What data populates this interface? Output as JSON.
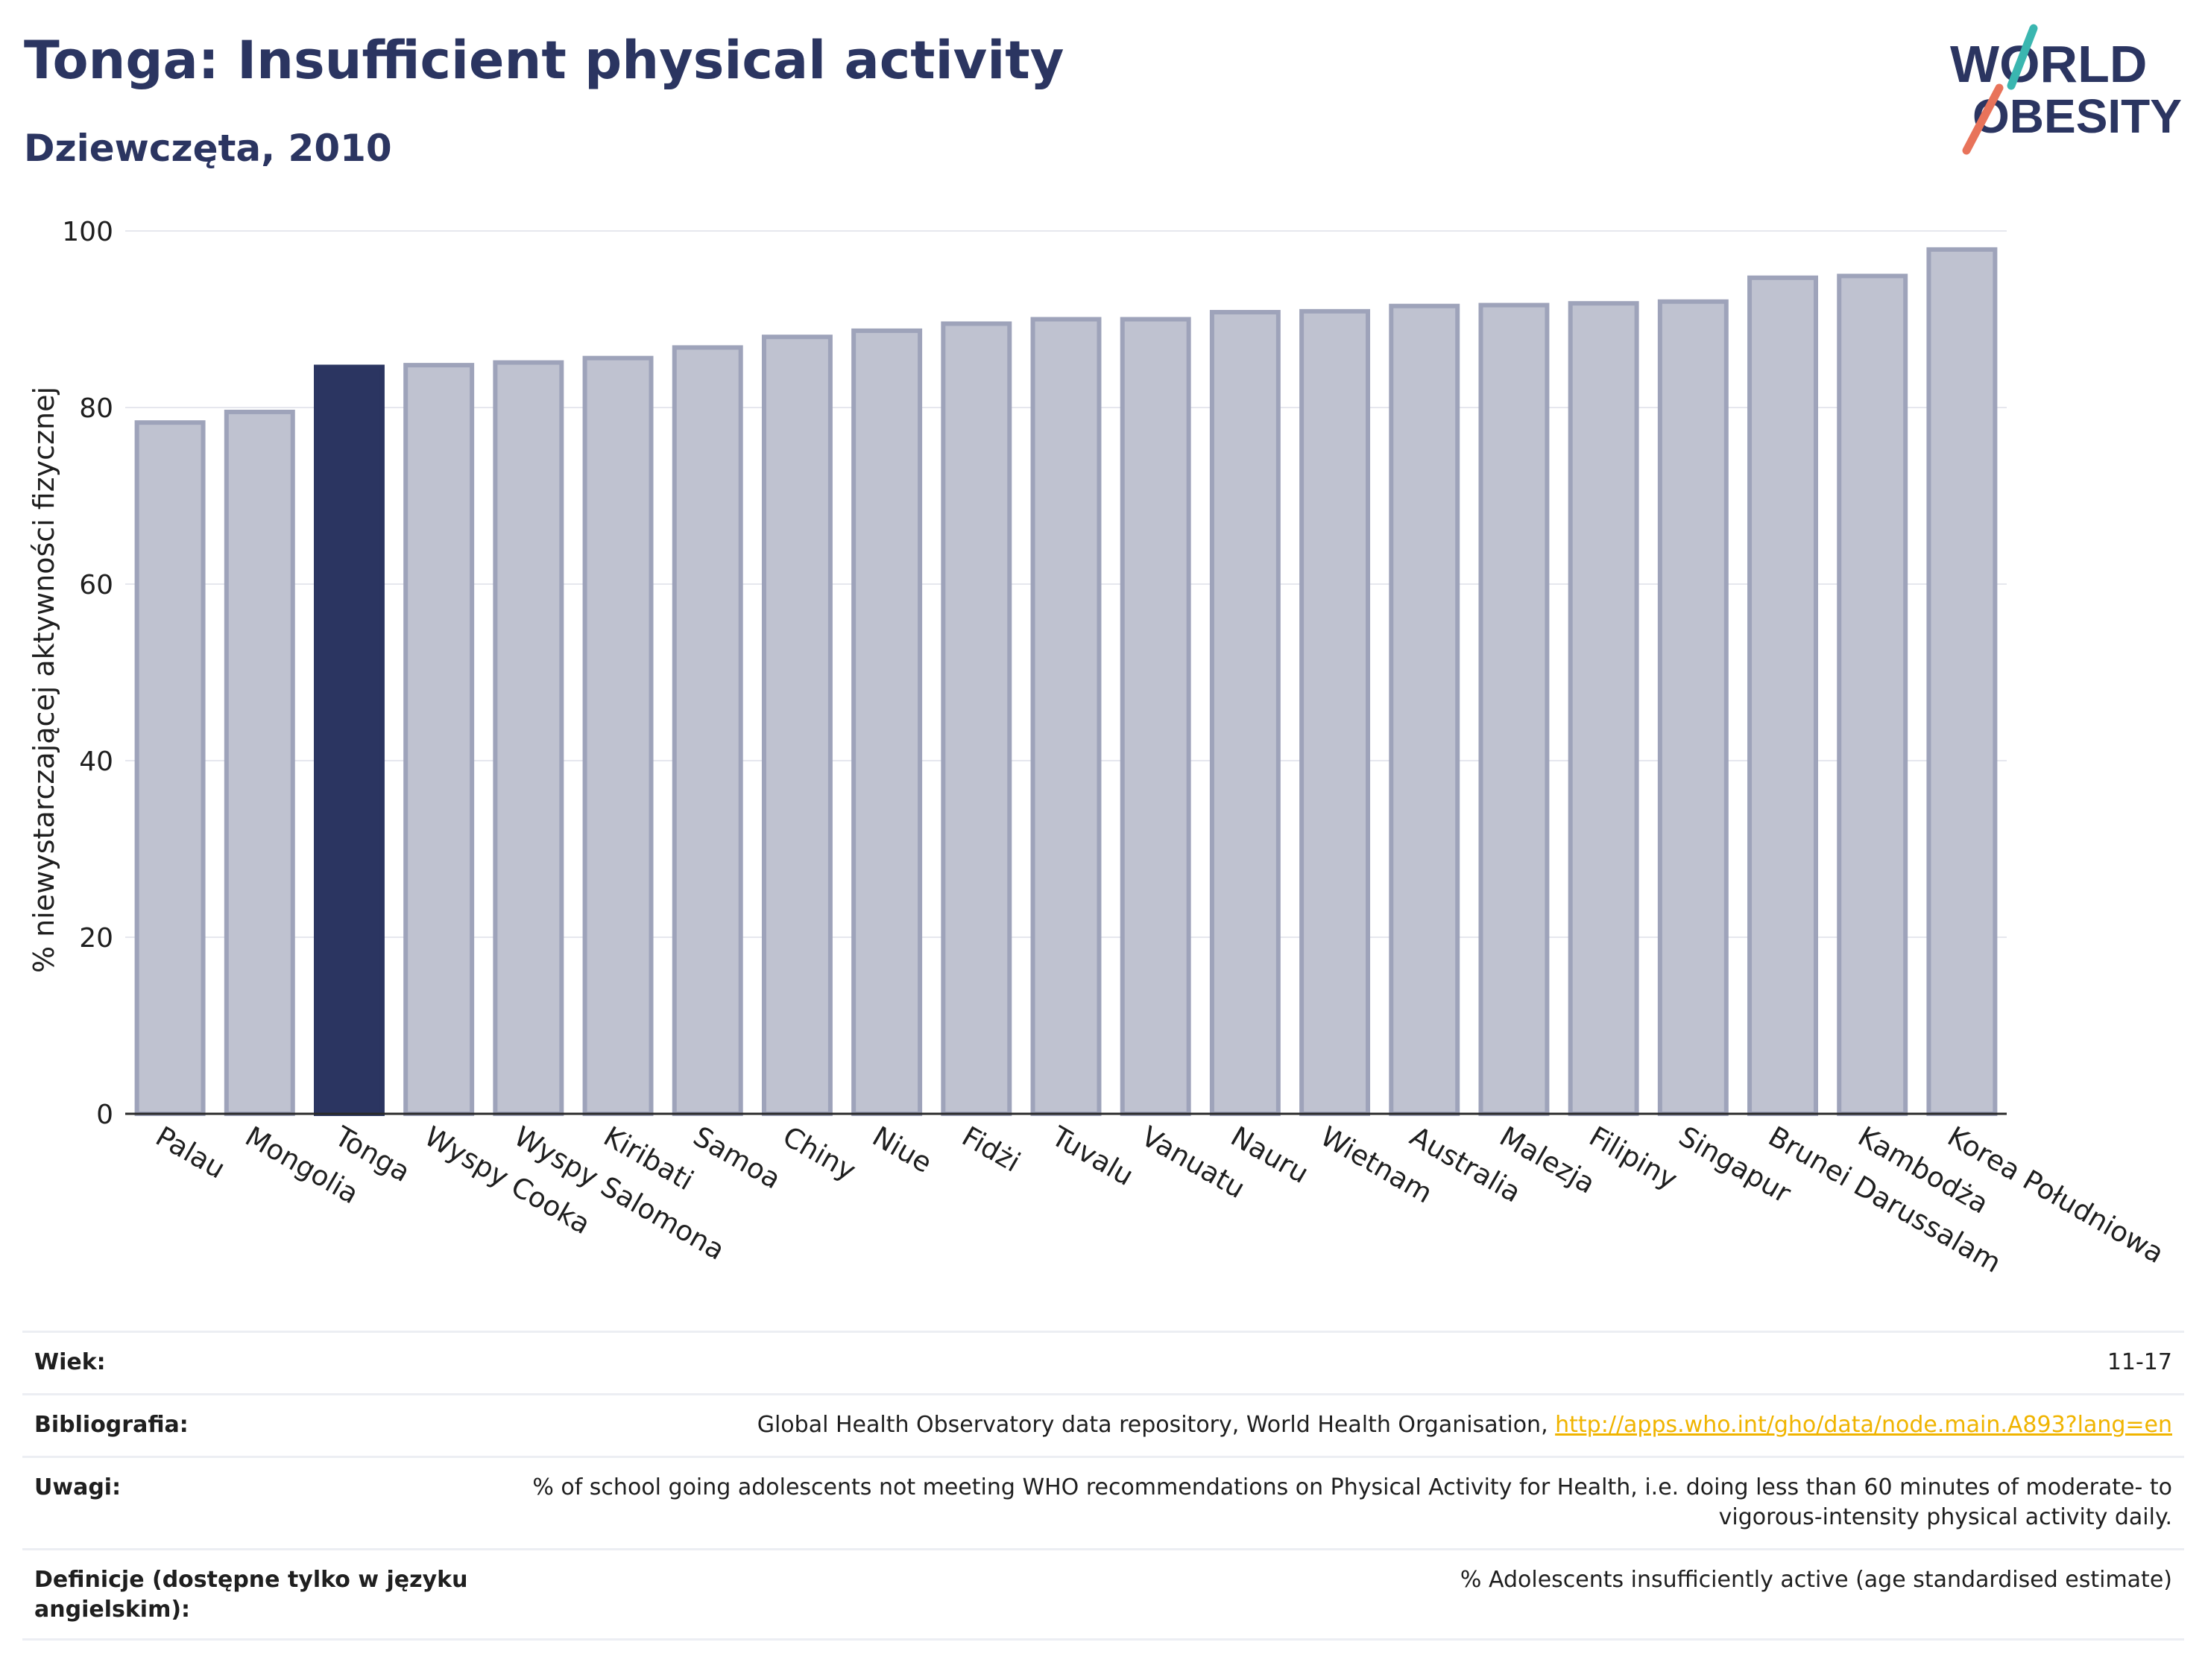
{
  "header": {
    "title": "Tonga: Insufficient physical activity",
    "subtitle": "Dziewczęta, 2010"
  },
  "logo": {
    "line1": "WORLD",
    "line2": "OBESITY",
    "color": "#2b3561",
    "accent_teal": "#3ab6b0",
    "accent_coral": "#e8735a"
  },
  "chart_data": {
    "type": "bar",
    "categories": [
      "Palau",
      "Mongolia",
      "Tonga",
      "Wyspy Cooka",
      "Wyspy Salomona",
      "Kiribati",
      "Samoa",
      "Chiny",
      "Niue",
      "Fidżi",
      "Tuvalu",
      "Vanuatu",
      "Nauru",
      "Wietnam",
      "Australia",
      "Malezja",
      "Filipiny",
      "Singapur",
      "Brunei Darussalam",
      "Kambodża",
      "Korea Południowa"
    ],
    "values": [
      78.3,
      79.5,
      84.6,
      84.8,
      85.1,
      85.6,
      86.8,
      88.0,
      88.7,
      89.5,
      90.0,
      90.0,
      90.8,
      90.9,
      91.5,
      91.6,
      91.8,
      92.0,
      94.7,
      94.9,
      97.9
    ],
    "highlight": "Tonga",
    "ylabel": "% niewystarczającej aktywności fizycznej",
    "xlabel": "",
    "ylim": [
      0,
      100
    ],
    "yticks": [
      0,
      20,
      40,
      60,
      80,
      100
    ],
    "grid": true,
    "colors": {
      "bar": "#bfc2d0",
      "bar_edge": "#9ea3ba",
      "highlight": "#2b3561",
      "grid": "#e6e7ee",
      "axis": "#2a2a2a"
    }
  },
  "meta": {
    "age_label": "Wiek:",
    "age_value": "11-17",
    "bib_label": "Bibliografia:",
    "bib_text": "Global Health Observatory data repository, World Health Organisation, ",
    "bib_link": "http://apps.who.int/gho/data/node.main.A893?lang=en",
    "notes_label": "Uwagi:",
    "notes_value": "% of school going adolescents not meeting WHO recommendations on Physical Activity for Health, i.e. doing less than 60 minutes of moderate- to vigorous-intensity physical activity daily.",
    "def_label": "Definicje (dostępne tylko w języku angielskim):",
    "def_value": "% Adolescents insufficiently active (age standardised estimate)"
  }
}
